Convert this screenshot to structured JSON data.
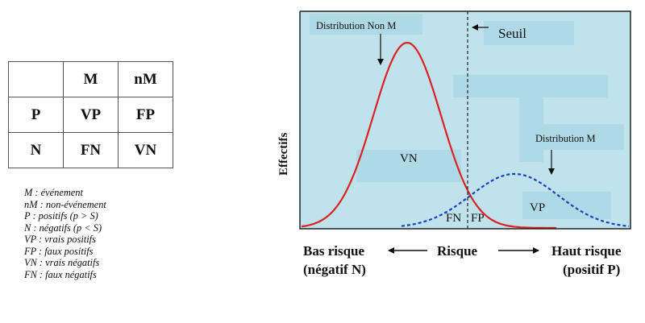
{
  "table": {
    "header": [
      "",
      "M",
      "nM"
    ],
    "rows": [
      [
        "P",
        "VP",
        "FP"
      ],
      [
        "N",
        "FN",
        "VN"
      ]
    ]
  },
  "legend": [
    "M : événement",
    "nM : non-événement",
    "P : positifs (p > S)",
    "N : négatifs (p < S)",
    "VP : vrais positifs",
    "FP : faux positifs",
    "VN : vrais négatifs",
    "FN : faux négatifs"
  ],
  "diagram": {
    "y_axis_label": "Effectifs",
    "threshold_label": "Seuil",
    "dist_nonM_label": "Distribution Non M",
    "dist_M_label": "Distribution M",
    "region_labels": {
      "VN": "VN",
      "FN": "FN",
      "FP": "FP",
      "VP": "VP"
    },
    "axis_low_label": "Bas risque",
    "axis_low_sub": "(négatif N)",
    "axis_mid_label": "Risque",
    "axis_high_label": "Haut risque",
    "axis_high_sub": "(positif P)",
    "colors": {
      "panel": "#bfe2ec",
      "nonM_curve": "#dd2222",
      "M_curve": "#1f3fbf",
      "frame": "#222222"
    }
  }
}
